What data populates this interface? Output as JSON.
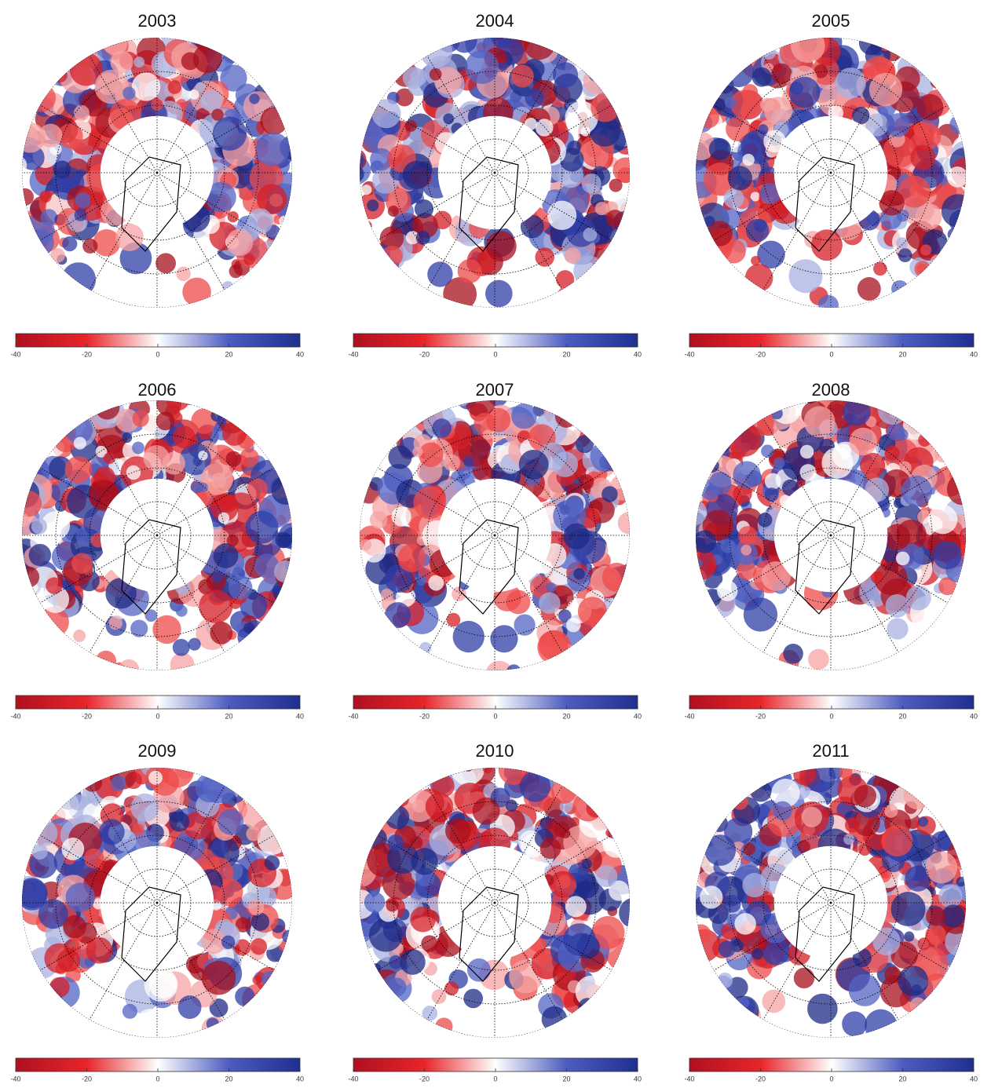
{
  "panels": [
    {
      "title": "2003"
    },
    {
      "title": "2004"
    },
    {
      "title": "2005"
    },
    {
      "title": "2006"
    },
    {
      "title": "2007"
    },
    {
      "title": "2008"
    },
    {
      "title": "2009"
    },
    {
      "title": "2010"
    },
    {
      "title": "2011"
    }
  ],
  "colorbar": {
    "range": [
      -40,
      40
    ],
    "ticks": [
      -40,
      -20,
      0,
      20,
      40
    ]
  }
}
